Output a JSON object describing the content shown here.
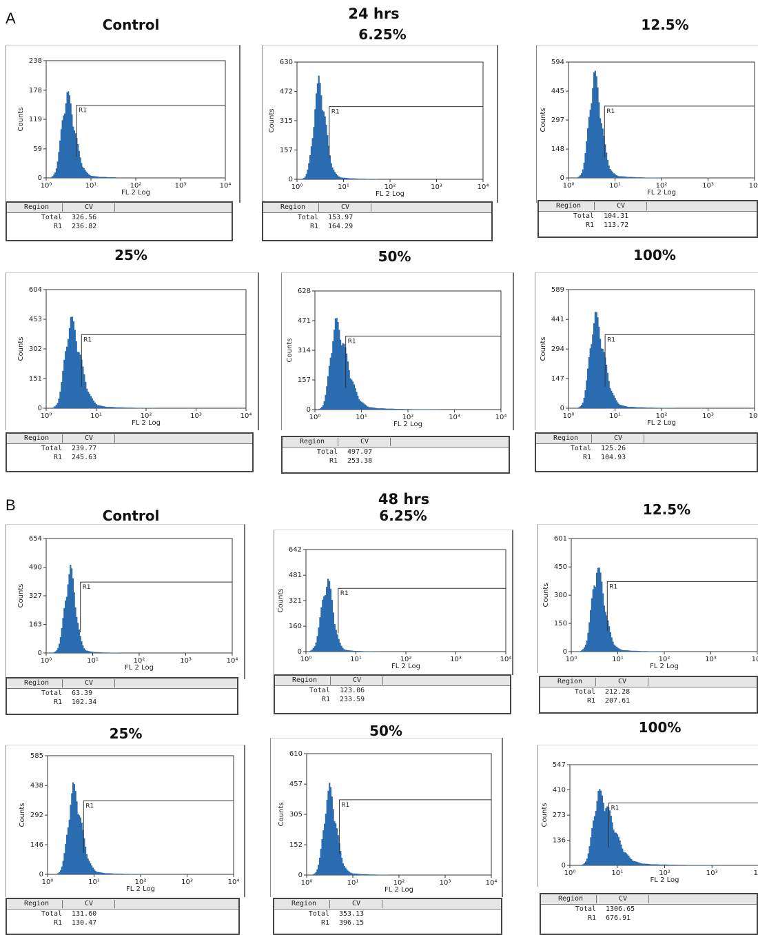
{
  "sections": [
    {
      "label": "A",
      "time": "24 hrs"
    },
    {
      "label": "B",
      "time": "48 hrs"
    }
  ],
  "table_headers": {
    "region": "Region",
    "cv": "CV"
  },
  "row_names": {
    "total": "Total",
    "r1": "R1"
  },
  "region_label": "R1",
  "colors": {
    "histogram": "#2b6cb0",
    "axis": "#333333"
  },
  "chart_data": [
    {
      "type": "histogram",
      "panel": "A-control",
      "title": "Control",
      "xlabel": "FL 2 Log",
      "ylabel": "Counts",
      "xscale": "log",
      "xlim": [
        1,
        10000
      ],
      "x_ticks": [
        "10⁰",
        "10¹",
        "10²",
        "10³",
        "10⁴"
      ],
      "y_ticks": [
        "0",
        "59",
        "119",
        "178",
        "238"
      ],
      "ylim": [
        0,
        238
      ],
      "peak": {
        "x": 2.8,
        "height": 153,
        "right_tail": 0.33
      },
      "cv": {
        "total": "326.56",
        "r1": "236.82"
      }
    },
    {
      "type": "histogram",
      "panel": "A-6.25",
      "title": "6.25%",
      "xlabel": "FL 2 Log",
      "ylabel": "Counts",
      "xscale": "log",
      "xlim": [
        1,
        10000
      ],
      "x_ticks": [
        "10⁰",
        "10¹",
        "10²",
        "10³",
        "10⁴"
      ],
      "y_ticks": [
        "0",
        "157",
        "315",
        "472",
        "630"
      ],
      "ylim": [
        0,
        630
      ],
      "peak": {
        "x": 2.9,
        "height": 470,
        "right_tail": 0.26
      },
      "cv": {
        "total": "153.97",
        "r1": "164.29"
      }
    },
    {
      "type": "histogram",
      "panel": "A-12.5",
      "title": "12.5%",
      "xlabel": "FL 2 Log",
      "ylabel": "Counts",
      "xscale": "log",
      "xlim": [
        1,
        10000
      ],
      "x_ticks": [
        "10⁰",
        "10¹",
        "10²",
        "10³",
        "10⁴"
      ],
      "y_ticks": [
        "0",
        "148",
        "297",
        "445",
        "594"
      ],
      "ylim": [
        0,
        594
      ],
      "peak": {
        "x": 3.5,
        "height": 470,
        "right_tail": 0.28
      },
      "cv": {
        "total": "104.31",
        "r1": "113.72"
      }
    },
    {
      "type": "histogram",
      "panel": "A-25",
      "title": "25%",
      "xlabel": "FL 2 Log",
      "ylabel": "Counts",
      "xscale": "log",
      "xlim": [
        1,
        10000
      ],
      "x_ticks": [
        "10⁰",
        "10¹",
        "10²",
        "10³",
        "10⁴"
      ],
      "y_ticks": [
        "0",
        "151",
        "302",
        "453",
        "604"
      ],
      "ylim": [
        0,
        604
      ],
      "peak": {
        "x": 3.0,
        "height": 400,
        "right_tail": 0.36
      },
      "cv": {
        "total": "239.77",
        "r1": "245.63"
      }
    },
    {
      "type": "histogram",
      "panel": "A-50",
      "title": "50%",
      "xlabel": "FL 2 Log",
      "ylabel": "Counts",
      "xscale": "log",
      "xlim": [
        1,
        10000
      ],
      "x_ticks": [
        "10⁰",
        "10¹",
        "10²",
        "10³",
        "10⁴"
      ],
      "y_ticks": [
        "0",
        "157",
        "314",
        "471",
        "628"
      ],
      "ylim": [
        0,
        628
      ],
      "peak": {
        "x": 2.7,
        "height": 410,
        "right_tail": 0.45
      },
      "cv": {
        "total": "497.07",
        "r1": "253.38"
      }
    },
    {
      "type": "histogram",
      "panel": "A-100",
      "title": "100%",
      "xlabel": "FL 2 Log",
      "ylabel": "Counts",
      "xscale": "log",
      "xlim": [
        1,
        10000
      ],
      "x_ticks": [
        "10⁰",
        "10¹",
        "10²",
        "10³",
        "10⁴"
      ],
      "y_ticks": [
        "0",
        "147",
        "294",
        "441",
        "589"
      ],
      "ylim": [
        0,
        589
      ],
      "peak": {
        "x": 3.6,
        "height": 410,
        "right_tail": 0.36
      },
      "cv": {
        "total": "125.26",
        "r1": "104.93"
      }
    },
    {
      "type": "histogram",
      "panel": "B-control",
      "title": "Control",
      "xlabel": "FL 2 Log",
      "ylabel": "Counts",
      "xscale": "log",
      "xlim": [
        1,
        10000
      ],
      "x_ticks": [
        "10⁰",
        "10¹",
        "10²",
        "10³",
        "10⁴"
      ],
      "y_ticks": [
        "0",
        "163",
        "327",
        "490",
        "654"
      ],
      "ylim": [
        0,
        654
      ],
      "peak": {
        "x": 3.2,
        "height": 430,
        "right_tail": 0.22
      },
      "cv": {
        "total": "63.39",
        "r1": "102.34"
      }
    },
    {
      "type": "histogram",
      "panel": "B-6.25",
      "title": "6.25%",
      "xlabel": "FL 2 Log",
      "ylabel": "Counts",
      "xscale": "log",
      "xlim": [
        1,
        10000
      ],
      "x_ticks": [
        "10⁰",
        "10¹",
        "10²",
        "10³",
        "10⁴"
      ],
      "y_ticks": [
        "0",
        "160",
        "321",
        "481",
        "642"
      ],
      "ylim": [
        0,
        642
      ],
      "peak": {
        "x": 2.6,
        "height": 410,
        "right_tail": 0.22
      },
      "cv": {
        "total": "123.06",
        "r1": "233.59"
      }
    },
    {
      "type": "histogram",
      "panel": "B-12.5",
      "title": "12.5%",
      "xlabel": "FL 2 Log",
      "ylabel": "Counts",
      "xscale": "log",
      "xlim": [
        1,
        10000
      ],
      "x_ticks": [
        "10⁰",
        "10¹",
        "10²",
        "10³",
        "10⁴"
      ],
      "y_ticks": [
        "0",
        "150",
        "300",
        "450",
        "601"
      ],
      "ylim": [
        0,
        601
      ],
      "peak": {
        "x": 3.5,
        "height": 400,
        "right_tail": 0.3
      },
      "cv": {
        "total": "212.28",
        "r1": "207.61"
      }
    },
    {
      "type": "histogram",
      "panel": "B-25",
      "title": "25%",
      "xlabel": "FL 2 Log",
      "ylabel": "Counts",
      "xscale": "log",
      "xlim": [
        1,
        10000
      ],
      "x_ticks": [
        "10⁰",
        "10¹",
        "10²",
        "10³",
        "10⁴"
      ],
      "y_ticks": [
        "0",
        "146",
        "292",
        "438",
        "585"
      ],
      "ylim": [
        0,
        585
      ],
      "peak": {
        "x": 3.5,
        "height": 380,
        "right_tail": 0.32
      },
      "cv": {
        "total": "131.60",
        "r1": "130.47"
      }
    },
    {
      "type": "histogram",
      "panel": "B-50",
      "title": "50%",
      "xlabel": "FL 2 Log",
      "ylabel": "Counts",
      "xscale": "log",
      "xlim": [
        1,
        10000
      ],
      "x_ticks": [
        "10⁰",
        "10¹",
        "10²",
        "10³",
        "10⁴"
      ],
      "y_ticks": [
        "0",
        "152",
        "305",
        "457",
        "610"
      ],
      "ylim": [
        0,
        610
      ],
      "peak": {
        "x": 3.0,
        "height": 390,
        "right_tail": 0.28
      },
      "cv": {
        "total": "353.13",
        "r1": "396.15"
      }
    },
    {
      "type": "histogram",
      "panel": "B-100",
      "title": "100%",
      "xlabel": "FL 2 Log",
      "ylabel": "Counts",
      "xscale": "log",
      "xlim": [
        1,
        10000
      ],
      "x_ticks": [
        "10⁰",
        "10¹",
        "10²",
        "10³",
        "10⁴"
      ],
      "y_ticks": [
        "0",
        "136",
        "273",
        "410",
        "547"
      ],
      "ylim": [
        0,
        547
      ],
      "peak": {
        "x": 3.9,
        "height": 350,
        "right_tail": 0.55
      },
      "cv": {
        "total": "1306.65",
        "r1": "676.91"
      }
    }
  ]
}
